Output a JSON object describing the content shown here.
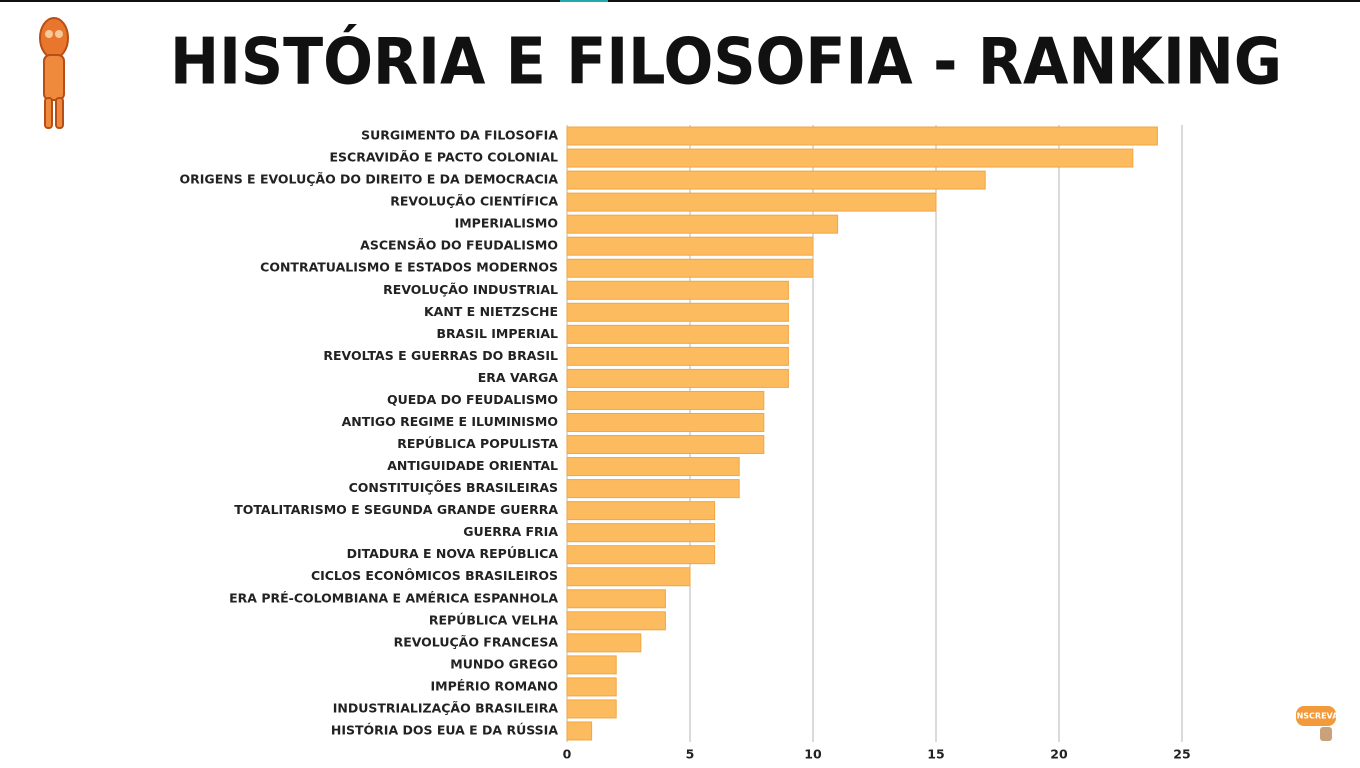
{
  "chart_data": {
    "type": "bar",
    "orientation": "horizontal",
    "title": "HISTÓRIA E FILOSOFIA - RANKING",
    "categories": [
      "SURGIMENTO DA FILOSOFIA",
      "ESCRAVIDÃO E PACTO COLONIAL",
      "ORIGENS E EVOLUÇÃO DO DIREITO E DA DEMOCRACIA",
      "REVOLUÇÃO CIENTÍFICA",
      "IMPERIALISMO",
      "ASCENSÃO DO FEUDALISMO",
      "CONTRATUALISMO E ESTADOS MODERNOS",
      "REVOLUÇÃO INDUSTRIAL",
      "KANT E NIETZSCHE",
      "BRASIL IMPERIAL",
      "REVOLTAS E GUERRAS DO BRASIL",
      "ERA VARGA",
      "QUEDA DO FEUDALISMO",
      "ANTIGO REGIME E ILUMINISMO",
      "REPÚBLICA POPULISTA",
      "ANTIGUIDADE ORIENTAL",
      "CONSTITUIÇÕES BRASILEIRAS",
      "TOTALITARISMO E SEGUNDA GRANDE GUERRA",
      "GUERRA FRIA",
      "DITADURA E NOVA REPÚBLICA",
      "CICLOS ECONÔMICOS BRASILEIROS",
      "ERA PRÉ-COLOMBIANA E AMÉRICA ESPANHOLA",
      "REPÚBLICA VELHA",
      "REVOLUÇÃO FRANCESA",
      "MUNDO GREGO",
      "IMPÉRIO ROMANO",
      "INDUSTRIALIZAÇÃO BRASILEIRA",
      "HISTÓRIA DOS EUA E DA RÚSSIA"
    ],
    "values": [
      24,
      23,
      17,
      15,
      11,
      10,
      10,
      9,
      9,
      9,
      9,
      9,
      8,
      8,
      8,
      7,
      7,
      6,
      6,
      6,
      5,
      4,
      4,
      3,
      2,
      2,
      2,
      1
    ],
    "color": "#fdbb5f",
    "xlim": [
      0,
      25
    ],
    "xticks": [
      0,
      5,
      10,
      15,
      20,
      25
    ],
    "grid": true
  },
  "badge": "INSCREVA"
}
